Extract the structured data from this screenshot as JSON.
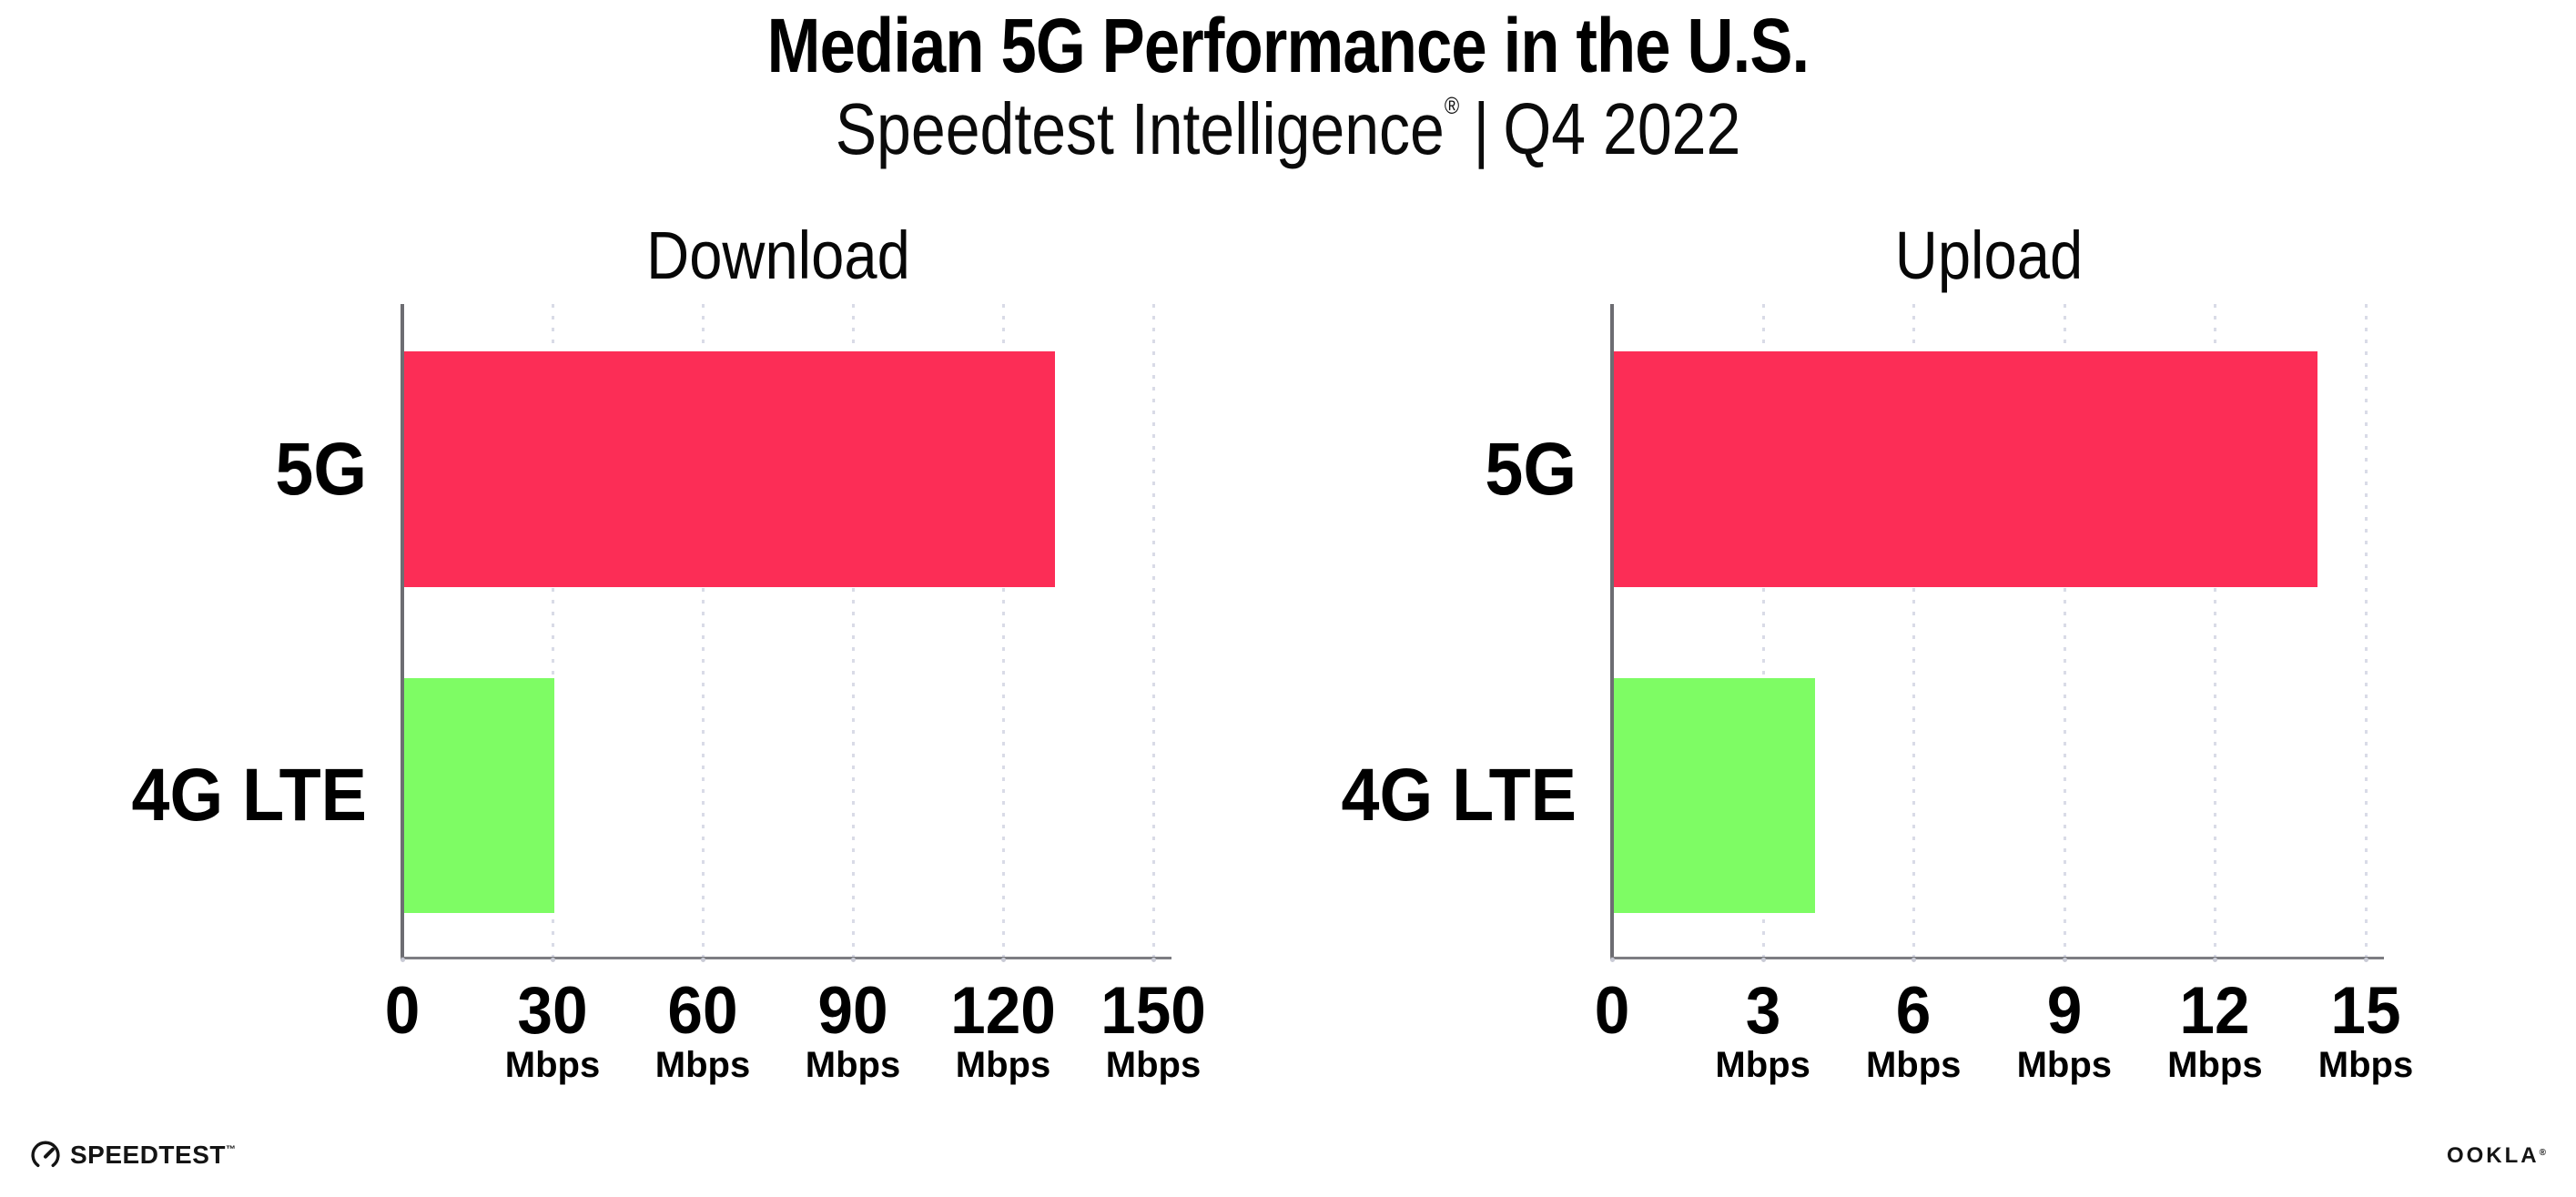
{
  "header": {
    "title": "Median 5G Performance in the U.S.",
    "subtitle_brand": "Speedtest Intelligence",
    "subtitle_registered": "®",
    "subtitle_separator": "|",
    "subtitle_period": "Q4 2022"
  },
  "chart_data": [
    {
      "type": "bar",
      "orientation": "horizontal",
      "title": "Download",
      "categories": [
        "5G",
        "4G LTE"
      ],
      "values": [
        130,
        30
      ],
      "unit": "Mbps",
      "xlim": [
        0,
        150
      ],
      "xticks": [
        0,
        30,
        60,
        90,
        120,
        150
      ],
      "tick_unit_label": "Mbps",
      "bar_colors": [
        "#fc2d56",
        "#7efc64"
      ],
      "grid": "dotted-vertical",
      "legend": "none"
    },
    {
      "type": "bar",
      "orientation": "horizontal",
      "title": "Upload",
      "categories": [
        "5G",
        "4G LTE"
      ],
      "values": [
        14,
        4
      ],
      "unit": "Mbps",
      "xlim": [
        0,
        15
      ],
      "xticks": [
        0,
        3,
        6,
        9,
        12,
        15
      ],
      "tick_unit_label": "Mbps",
      "bar_colors": [
        "#fc2d56",
        "#7efc64"
      ],
      "grid": "dotted-vertical",
      "legend": "none"
    }
  ],
  "footer": {
    "speedtest_label": "SPEEDTEST",
    "speedtest_trademark": "™",
    "ookla_label": "OOKLA",
    "ookla_registered": "®"
  },
  "colors": {
    "bar_5g": "#fc2d56",
    "bar_4g_lte": "#7efc64",
    "axis_line": "#7d7d82",
    "grid_dot": "#d9dbe7",
    "text": "#000000",
    "background": "#ffffff"
  }
}
